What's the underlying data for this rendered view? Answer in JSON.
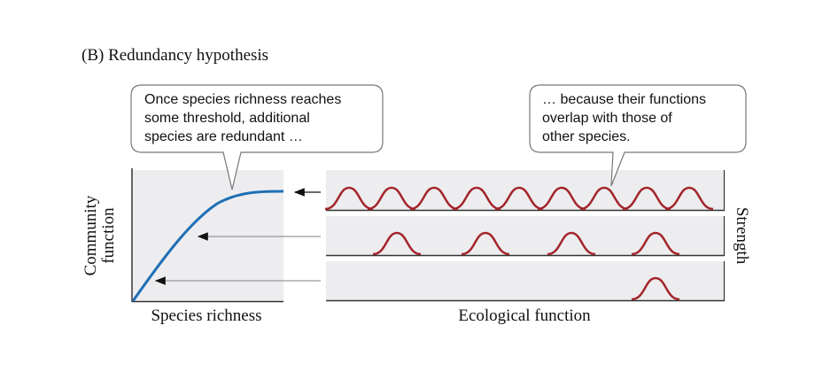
{
  "figure": {
    "title": "(B) Redundancy hypothesis",
    "callouts": [
      {
        "lines": [
          "Once species richness reaches",
          "some threshold, additional",
          "species are redundant …"
        ]
      },
      {
        "lines": [
          "… because their functions",
          "overlap with those of",
          "other species."
        ]
      }
    ],
    "left_panel": {
      "y_label": [
        "Community",
        "function"
      ],
      "x_label": "Species richness"
    },
    "right_panel": {
      "x_label": "Ecological function",
      "y_label": "Strength"
    }
  }
}
